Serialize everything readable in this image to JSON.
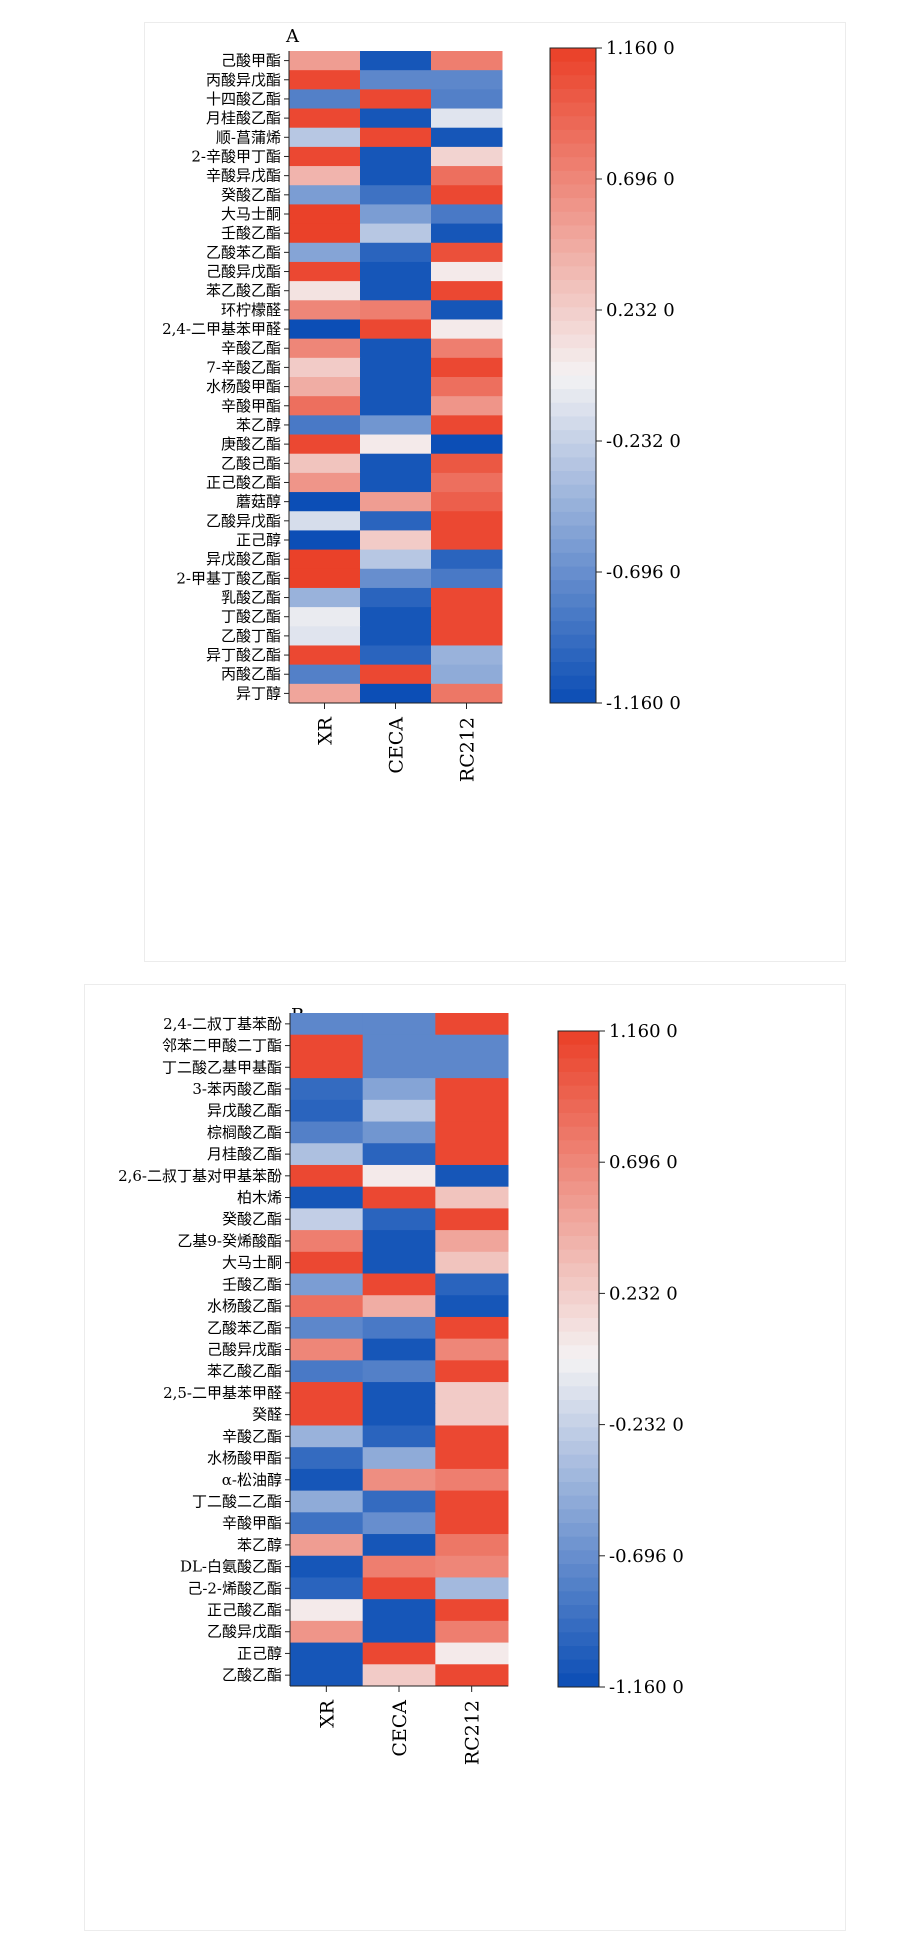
{
  "chart_data": [
    {
      "type": "heatmap",
      "panel_label": "A",
      "columns": [
        "XR",
        "CECA",
        "RC212"
      ],
      "rows": [
        {
          "label": "己酸甲酯",
          "values": [
            0.55,
            -1.1,
            0.75
          ]
        },
        {
          "label": "丙酸异戊酯",
          "values": [
            1.1,
            -0.75,
            -0.75
          ]
        },
        {
          "label": "十四酸乙酯",
          "values": [
            -0.8,
            1.1,
            -0.8
          ]
        },
        {
          "label": "月桂酸乙酯",
          "values": [
            1.1,
            -1.1,
            -0.1
          ]
        },
        {
          "label": "顺-菖蒲烯",
          "values": [
            -0.3,
            1.1,
            -1.1
          ]
        },
        {
          "label": "2-辛酸甲丁酯",
          "values": [
            1.1,
            -1.1,
            0.2
          ]
        },
        {
          "label": "辛酸异戊酯",
          "values": [
            0.4,
            -1.1,
            0.85
          ]
        },
        {
          "label": "癸酸乙酯",
          "values": [
            -0.6,
            -0.9,
            1.1
          ]
        },
        {
          "label": "大马士酮",
          "values": [
            1.15,
            -0.6,
            -0.85
          ]
        },
        {
          "label": "壬酸乙酯",
          "values": [
            1.15,
            -0.3,
            -1.1
          ]
        },
        {
          "label": "乙酸苯乙酯",
          "values": [
            -0.55,
            -1.0,
            1.05
          ]
        },
        {
          "label": "己酸异戊酯",
          "values": [
            1.1,
            -1.1,
            0.05
          ]
        },
        {
          "label": "苯乙酸乙酯",
          "values": [
            0.1,
            -1.1,
            1.1
          ]
        },
        {
          "label": "环柠檬醛",
          "values": [
            0.7,
            0.75,
            -1.1
          ]
        },
        {
          "label": "2,4-二甲基苯甲醛",
          "values": [
            -1.15,
            1.1,
            0.05
          ]
        },
        {
          "label": "辛酸乙酯",
          "values": [
            0.7,
            -1.1,
            0.75
          ]
        },
        {
          "label": "7-辛酸乙酯",
          "values": [
            0.25,
            -1.1,
            1.1
          ]
        },
        {
          "label": "水杨酸甲酯",
          "values": [
            0.45,
            -1.1,
            0.85
          ]
        },
        {
          "label": "辛酸甲酯",
          "values": [
            0.85,
            -1.1,
            0.6
          ]
        },
        {
          "label": "苯乙醇",
          "values": [
            -0.85,
            -0.65,
            1.1
          ]
        },
        {
          "label": "庚酸乙酯",
          "values": [
            1.1,
            0.05,
            -1.15
          ]
        },
        {
          "label": "乙酸己酯",
          "values": [
            0.3,
            -1.1,
            1.0
          ]
        },
        {
          "label": "正己酸乙酯",
          "values": [
            0.6,
            -1.1,
            0.85
          ]
        },
        {
          "label": "蘑菇醇",
          "values": [
            -1.15,
            0.55,
            0.95
          ]
        },
        {
          "label": "乙酸异戊酯",
          "values": [
            -0.15,
            -1.0,
            1.1
          ]
        },
        {
          "label": "正己醇",
          "values": [
            -1.15,
            0.25,
            1.1
          ]
        },
        {
          "label": "异戊酸乙酯",
          "values": [
            1.15,
            -0.3,
            -1.0
          ]
        },
        {
          "label": "2-甲基丁酸乙酯",
          "values": [
            1.15,
            -0.7,
            -0.85
          ]
        },
        {
          "label": "乳酸乙酯",
          "values": [
            -0.45,
            -1.0,
            1.1
          ]
        },
        {
          "label": "丁酸乙酯",
          "values": [
            -0.05,
            -1.1,
            1.1
          ]
        },
        {
          "label": "乙酸丁酯",
          "values": [
            -0.1,
            -1.1,
            1.1
          ]
        },
        {
          "label": "异丁酸乙酯",
          "values": [
            1.1,
            -1.0,
            -0.45
          ]
        },
        {
          "label": "丙酸乙酯",
          "values": [
            -0.8,
            1.1,
            -0.5
          ]
        },
        {
          "label": "异丁醇",
          "values": [
            0.5,
            -1.15,
            0.8
          ]
        }
      ],
      "colorbar": {
        "min": -1.16,
        "max": 1.16,
        "ticks": [
          "1.160 0",
          "0.696 0",
          "0.232 0",
          "-0.232 0",
          "-0.696 0",
          "-1.160 0"
        ],
        "colors": {
          "low": "#0a4db5",
          "mid": "#f4f2f3",
          "high": "#ea3f27"
        }
      }
    },
    {
      "type": "heatmap",
      "panel_label": "B",
      "columns": [
        "XR",
        "CECA",
        "RC212"
      ],
      "rows": [
        {
          "label": "2,4-二叔丁基苯酚",
          "values": [
            -0.75,
            -0.75,
            1.1
          ]
        },
        {
          "label": "邻苯二甲酸二丁酯",
          "values": [
            1.1,
            -0.75,
            -0.75
          ]
        },
        {
          "label": "丁二酸乙基甲基酯",
          "values": [
            1.1,
            -0.75,
            -0.75
          ]
        },
        {
          "label": "3-苯丙酸乙酯",
          "values": [
            -0.95,
            -0.55,
            1.1
          ]
        },
        {
          "label": "异戊酸乙酯",
          "values": [
            -1.0,
            -0.3,
            1.1
          ]
        },
        {
          "label": "棕榈酸乙酯",
          "values": [
            -0.8,
            -0.65,
            1.1
          ]
        },
        {
          "label": "月桂酸乙酯",
          "values": [
            -0.35,
            -1.0,
            1.1
          ]
        },
        {
          "label": "2,6-二叔丁基对甲基苯酚",
          "values": [
            1.1,
            0.05,
            -1.1
          ]
        },
        {
          "label": "柏木烯",
          "values": [
            -1.1,
            1.1,
            0.3
          ]
        },
        {
          "label": "癸酸乙酯",
          "values": [
            -0.25,
            -1.0,
            1.1
          ]
        },
        {
          "label": "乙基9-癸烯酸酯",
          "values": [
            0.75,
            -1.1,
            0.5
          ]
        },
        {
          "label": "大马士酮",
          "values": [
            1.1,
            -1.1,
            0.3
          ]
        },
        {
          "label": "壬酸乙酯",
          "values": [
            -0.6,
            1.1,
            -1.0
          ]
        },
        {
          "label": "水杨酸乙酯",
          "values": [
            0.85,
            0.45,
            -1.1
          ]
        },
        {
          "label": "乙酸苯乙酯",
          "values": [
            -0.75,
            -0.85,
            1.1
          ]
        },
        {
          "label": "己酸异戊酯",
          "values": [
            0.7,
            -1.1,
            0.7
          ]
        },
        {
          "label": "苯乙酸乙酯",
          "values": [
            -0.85,
            -0.8,
            1.1
          ]
        },
        {
          "label": "2,5-二甲基苯甲醛",
          "values": [
            1.1,
            -1.1,
            0.25
          ]
        },
        {
          "label": "癸醛",
          "values": [
            1.1,
            -1.1,
            0.25
          ]
        },
        {
          "label": "辛酸乙酯",
          "values": [
            -0.45,
            -1.0,
            1.1
          ]
        },
        {
          "label": "水杨酸甲酯",
          "values": [
            -0.95,
            -0.5,
            1.1
          ]
        },
        {
          "label": "α-松油醇",
          "values": [
            -1.1,
            0.65,
            0.75
          ]
        },
        {
          "label": "丁二酸二乙酯",
          "values": [
            -0.5,
            -0.95,
            1.1
          ]
        },
        {
          "label": "辛酸甲酯",
          "values": [
            -0.9,
            -0.7,
            1.1
          ]
        },
        {
          "label": "苯乙醇",
          "values": [
            0.55,
            -1.1,
            0.8
          ]
        },
        {
          "label": "DL-白氨酸乙酯",
          "values": [
            -1.1,
            0.75,
            0.7
          ]
        },
        {
          "label": "己-2-烯酸乙酯",
          "values": [
            -1.0,
            1.1,
            -0.4
          ]
        },
        {
          "label": "正己酸乙酯",
          "values": [
            0.05,
            -1.1,
            1.1
          ]
        },
        {
          "label": "乙酸异戊酯",
          "values": [
            0.6,
            -1.1,
            0.75
          ]
        },
        {
          "label": "正己醇",
          "values": [
            -1.1,
            1.1,
            0.05
          ]
        },
        {
          "label": "乙酸乙酯",
          "values": [
            -1.1,
            0.25,
            1.1
          ]
        }
      ],
      "colorbar": {
        "min": -1.16,
        "max": 1.16,
        "ticks": [
          "1.160 0",
          "0.696 0",
          "0.232 0",
          "-0.232 0",
          "-0.696 0",
          "-1.160 0"
        ],
        "colors": {
          "low": "#0a4db5",
          "mid": "#f4f2f3",
          "high": "#ea3f27"
        }
      }
    }
  ]
}
